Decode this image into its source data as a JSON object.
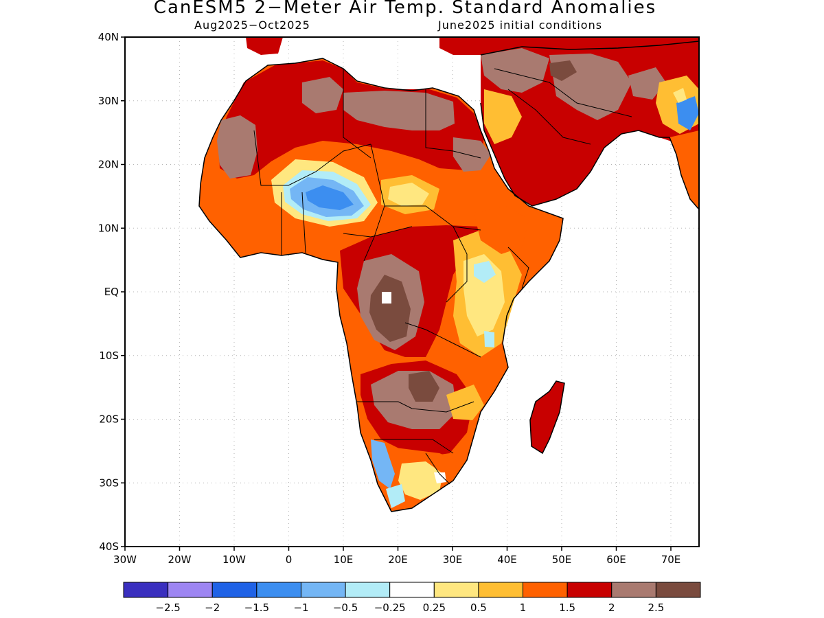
{
  "map": {
    "title": "CanESM5 2−Meter Air Temp. Standard Anomalies",
    "period": "Aug2025−Oct2025",
    "initial_conditions": "June2025 initial conditions",
    "lat_labels": [
      "40N",
      "30N",
      "20N",
      "10N",
      "EQ",
      "10S",
      "20S",
      "30S",
      "40S"
    ],
    "lon_labels": [
      "30W",
      "20W",
      "10W",
      "0",
      "10E",
      "20E",
      "30E",
      "40E",
      "50E",
      "60E",
      "70E"
    ]
  },
  "legend": {
    "colors": [
      "#3a2fbf",
      "#9d85f2",
      "#1f62e6",
      "#3c8ef0",
      "#74b6f5",
      "#b2ecf7",
      "#ffffff",
      "#ffe780",
      "#ffbe33",
      "#ff6100",
      "#c80000",
      "#a97a70",
      "#7a4b3e"
    ],
    "labels": [
      "−2.5",
      "−2",
      "−1.5",
      "−1",
      "−0.5",
      "−0.25",
      "0.25",
      "0.5",
      "1",
      "1.5",
      "2",
      "2.5"
    ]
  }
}
